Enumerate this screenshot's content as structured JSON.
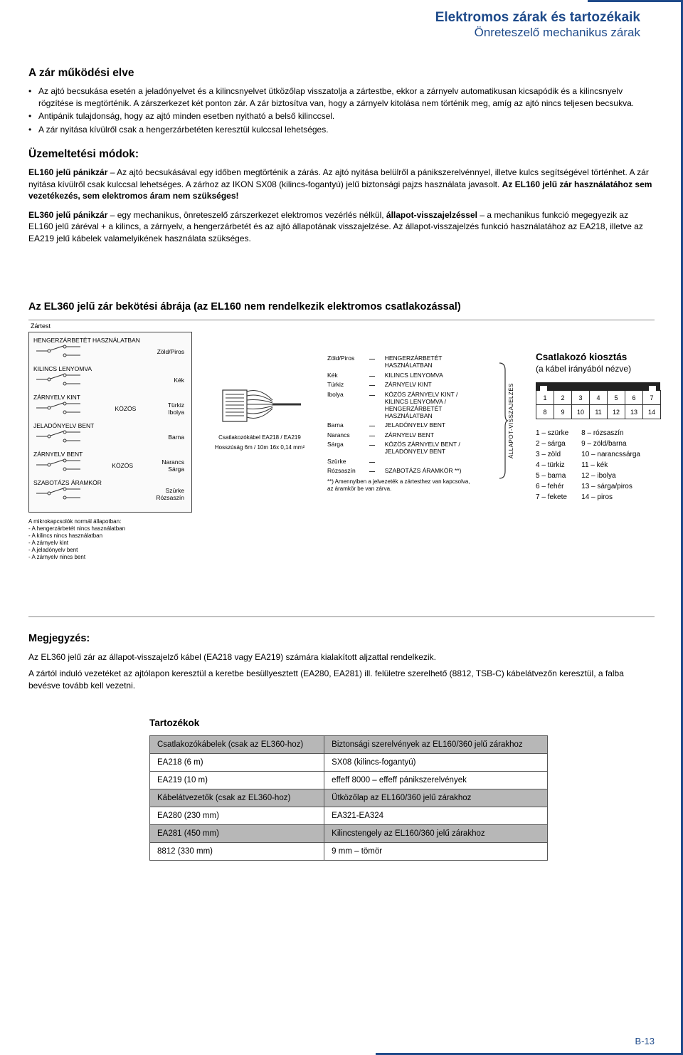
{
  "colors": {
    "brand": "#1e4a8a",
    "grid": "#555",
    "bg": "#ffffff",
    "header_gray": "#b7b7b7"
  },
  "header": {
    "title": "Elektromos zárak és tartozékaik",
    "subtitle": "Önreteszelő mechanikus zárak"
  },
  "principle": {
    "heading": "A zár működési elve",
    "bullets": [
      "Az ajtó becsukása esetén a jeladónyelvet és a kilincsnyelvet ütközőlap visszatolja a zártestbe, ekkor a zárnyelv automatikusan kicsapódik és a kilincsnyelv rögzítése is megtörténik. A zárszerkezet két ponton zár. A zár biztosítva van, hogy a zárnyelv kitolása nem történik meg, amíg az ajtó nincs teljesen becsukva.",
      "Antipánik tulajdonság, hogy az ajtó minden esetben nyitható a belső kilinccsel.",
      "A zár nyitása kívülről csak a hengerzárbetéten keresztül kulccsal lehetséges."
    ]
  },
  "modes": {
    "heading": "Üzemeltetési módok:",
    "p1_a": "EL160 jelű pánikzár",
    "p1_b": " – Az ajtó becsukásával egy időben megtörténik a zárás. Az ajtó nyitása belülről a pánikszerelvénnyel, illetve kulcs segítségével történhet. A zár nyitása kívülről csak kulccsal lehetséges. A zárhoz az IKON SX08 (kilincs-fogantyú) jelű biztonsági pajzs használata javasolt. ",
    "p1_c": "Az EL160 jelű zár használatához sem vezetékezés, sem elektromos áram nem szükséges!",
    "p2_a": "EL360 jelű pánikzár",
    "p2_b": " – egy mechanikus, önreteszelő zárszerkezet elektromos vezérlés nélkül, ",
    "p2_c": "állapot-visszajelzéssel",
    "p2_d": " – a mechanikus funkció megegyezik az EL160 jelű záréval + a kilincs, a zárnyelv, a hengerzárbetét és az ajtó állapotának visszajelzése. Az állapot-visszajelzés funkció használatához az EA218, illetve az EA219 jelű kábelek valamelyikének használata szükséges."
  },
  "wiring": {
    "heading": "Az EL360 jelű zár bekötési ábrája (az EL160 nem rendelkezik elektromos csatlakozással)",
    "zartest": "Zártest",
    "groups": [
      {
        "label": "HENGERZÁRBETÉT HASZNÁLATBAN",
        "right": "Zöld/Piros",
        "common": ""
      },
      {
        "label": "KILINCS LENYOMVA",
        "right": "Kék",
        "common": ""
      },
      {
        "label": "ZÁRNYELV KINT",
        "right": "Türkiz\nIbolya",
        "common": "KÖZÖS"
      },
      {
        "label": "JELADÓNYELV BENT",
        "right": "Barna",
        "common": ""
      },
      {
        "label": "ZÁRNYELV BENT",
        "right": "Narancs\nSárga",
        "common": "KÖZÖS"
      },
      {
        "label": "SZABOTÁZS ÁRAMKÖR",
        "right": "Szürke\nRózsaszín",
        "common": ""
      }
    ],
    "note_title": "A mikrokapcsolók normál állapotban:",
    "note_items": [
      "- A hengerzárbetét nincs használatban",
      "- A kilincs nincs használatban",
      "- A zárnyelv kint",
      "- A jeladónyelv bent",
      "- A zárnyelv nincs bent"
    ],
    "connector": {
      "label1": "Csatlakozókábel EA218 / EA219",
      "label2": "Hosszúság 6m / 10m 16x 0,14 mm²"
    },
    "wires": [
      {
        "color": "Zöld/Piros",
        "desc": "HENGERZÁRBETÉT HASZNÁLATBAN"
      },
      {
        "color": "Kék",
        "desc": "KILINCS LENYOMVA"
      },
      {
        "color": "Türkiz",
        "desc": "ZÁRNYELV KINT"
      },
      {
        "color": "Ibolya",
        "desc": "KÖZÖS ZÁRNYELV KINT / KILINCS LENYOMVA / HENGERZÁRBETÉT HASZNÁLATBAN"
      },
      {
        "color": "Barna",
        "desc": "JELADÓNYELV BENT"
      },
      {
        "color": "Narancs",
        "desc": "ZÁRNYELV BENT"
      },
      {
        "color": "Sárga",
        "desc": "KÖZÖS ZÁRNYELV BENT / JELADÓNYELV BENT"
      },
      {
        "color": "Szürke",
        "desc": ""
      },
      {
        "color": "Rózsaszín",
        "desc": "SZABOTÁZS ÁRAMKÖR **)"
      }
    ],
    "wires_footnote": "**) Amennyiben a jelvezeték a zártesthez van kapcsolva, az áramkör be van zárva.",
    "brace_label": "ÁLLAPOT-VISSZAJELZÉS"
  },
  "pinout": {
    "heading": "Csatlakozó kiosztás",
    "subheading": "(a kábel irányából nézve)",
    "row1": [
      "1",
      "2",
      "3",
      "4",
      "5",
      "6",
      "7"
    ],
    "row2": [
      "8",
      "9",
      "10",
      "11",
      "12",
      "13",
      "14"
    ],
    "legend_left": [
      "1 – szürke",
      "2 – sárga",
      "3 – zöld",
      "4 – türkiz",
      "5 – barna",
      "6 – fehér",
      "7 – fekete"
    ],
    "legend_right": [
      "8 – rózsaszín",
      "9 – zöld/barna",
      "10 – narancssárga",
      "11 – kék",
      "12 – ibolya",
      "13 – sárga/piros",
      "14 – piros"
    ]
  },
  "notes": {
    "heading": "Megjegyzés:",
    "p1": "Az EL360 jelű zár az állapot-visszajelző kábel (EA218 vagy EA219) számára kialakított aljzattal rendelkezik.",
    "p2": "A zártól induló vezetéket az ajtólapon keresztül a keretbe besüllyesztett (EA280, EA281) ill. felületre szerelhető (8812, TSB-C) kábelátvezőn keresztül, a falba bevésve tovább kell vezetni."
  },
  "accessories": {
    "heading": "Tartozékok",
    "headers": [
      "Csatlakozókábelek (csak az EL360-hoz)",
      "Biztonsági szerelvények az EL160/360 jelű zárakhoz"
    ],
    "rows": [
      [
        "EA218 (6 m)",
        "SX08 (kilincs-fogantyú)"
      ],
      [
        "EA219 (10 m)",
        "effeff 8000 – effeff pánikszerelvények"
      ],
      [
        "Kábelátvezetők (csak az EL360-hoz)",
        "Ütközőlap az EL160/360 jelű zárakhoz"
      ],
      [
        "EA280 (230 mm)",
        "EA321-EA324"
      ],
      [
        "EA281 (450 mm)",
        "Kilincstengely az EL160/360 jelű zárakhoz"
      ],
      [
        "8812 (330 mm)",
        "9 mm – tömör"
      ]
    ],
    "header_row_indices": [
      0,
      3
    ]
  },
  "page_number": "B-13"
}
